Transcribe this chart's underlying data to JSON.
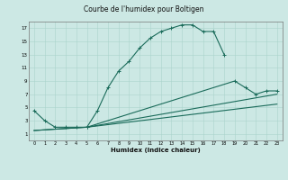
{
  "title": "Courbe de l'humidex pour Boltigen",
  "xlabel": "Humidex (Indice chaleur)",
  "bg_color": "#cce8e4",
  "grid_color": "#aad4cc",
  "line_color": "#1a6b5a",
  "xlim": [
    -0.5,
    23.5
  ],
  "ylim": [
    0,
    18
  ],
  "xticks": [
    0,
    1,
    2,
    3,
    4,
    5,
    6,
    7,
    8,
    9,
    10,
    11,
    12,
    13,
    14,
    15,
    16,
    17,
    18,
    19,
    20,
    21,
    22,
    23
  ],
  "yticks": [
    1,
    3,
    5,
    7,
    9,
    11,
    13,
    15,
    17
  ],
  "c1x": [
    0,
    1,
    2,
    3,
    4,
    5,
    6,
    7,
    8,
    9,
    10,
    11,
    12,
    13,
    14,
    15,
    16,
    17,
    18
  ],
  "c1y": [
    4.5,
    3.0,
    2.0,
    2.0,
    2.0,
    2.0,
    4.5,
    8.0,
    10.5,
    12.0,
    14.0,
    15.5,
    16.5,
    17.0,
    17.5,
    17.5,
    16.5,
    16.5,
    13.0
  ],
  "c2x": [
    5,
    19,
    20,
    21,
    22,
    23
  ],
  "c2y": [
    2.0,
    9.0,
    8.0,
    7.0,
    7.5,
    7.5
  ],
  "c3x": [
    0,
    5,
    23
  ],
  "c3y": [
    1.5,
    2.0,
    7.0
  ],
  "c4x": [
    0,
    5,
    23
  ],
  "c4y": [
    1.5,
    2.0,
    5.5
  ]
}
